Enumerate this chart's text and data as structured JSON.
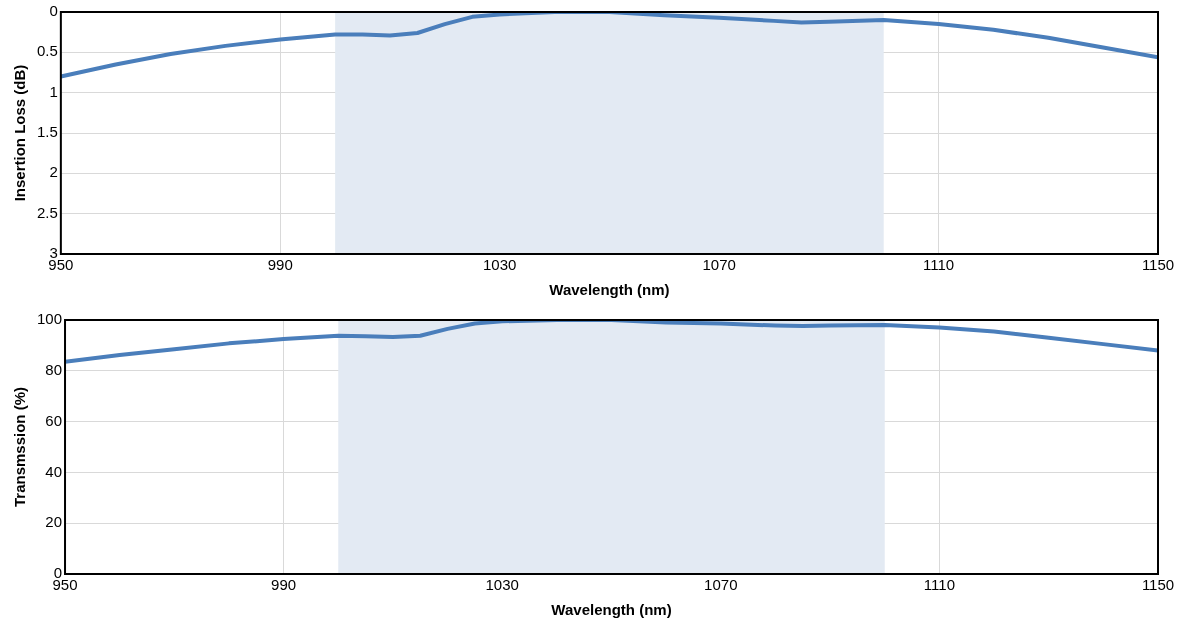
{
  "chart_data": [
    {
      "type": "line",
      "xlabel": "Wavelength (nm)",
      "ylabel": "Insertion Loss (dB)",
      "x": [
        950,
        960,
        970,
        980,
        990,
        1000,
        1005,
        1010,
        1015,
        1020,
        1025,
        1030,
        1040,
        1050,
        1060,
        1070,
        1080,
        1085,
        1090,
        1100,
        1110,
        1120,
        1130,
        1140,
        1150
      ],
      "series": [
        {
          "color": "#4a7ebb",
          "values": [
            0.8,
            0.65,
            0.52,
            0.42,
            0.34,
            0.28,
            0.28,
            0.29,
            0.26,
            0.15,
            0.06,
            0.03,
            0.0,
            0.0,
            0.04,
            0.07,
            0.11,
            0.13,
            0.12,
            0.1,
            0.15,
            0.22,
            0.32,
            0.44,
            0.56
          ]
        }
      ],
      "xlim": [
        950,
        1150
      ],
      "xticks": [
        950,
        990,
        1030,
        1070,
        1110,
        1150
      ],
      "ylim": [
        3,
        0
      ],
      "yticks": [
        0,
        0.5,
        1,
        1.5,
        2,
        2.5,
        3
      ],
      "grid": true,
      "bands": [
        {
          "axis": "x",
          "from": 1000,
          "to": 1100,
          "color": "#e3eaf3"
        }
      ]
    },
    {
      "type": "line",
      "xlabel": "Wavelength (nm)",
      "ylabel": "Transmssion (%)",
      "x": [
        950,
        960,
        970,
        980,
        990,
        1000,
        1005,
        1010,
        1015,
        1020,
        1025,
        1030,
        1040,
        1050,
        1060,
        1070,
        1080,
        1085,
        1090,
        1100,
        1110,
        1120,
        1130,
        1140,
        1150
      ],
      "series": [
        {
          "color": "#4a7ebb",
          "values": [
            83.6,
            86.2,
            88.5,
            90.8,
            92.5,
            93.8,
            93.6,
            93.3,
            93.8,
            96.5,
            98.6,
            99.5,
            100,
            100,
            99,
            98.6,
            97.8,
            97.6,
            97.8,
            98,
            97,
            95.5,
            93,
            90.5,
            88
          ]
        }
      ],
      "xlim": [
        950,
        1150
      ],
      "xticks": [
        950,
        990,
        1030,
        1070,
        1110,
        1150
      ],
      "ylim": [
        0,
        100
      ],
      "yticks": [
        0,
        20,
        40,
        60,
        80,
        100
      ],
      "grid": true,
      "bands": [
        {
          "axis": "x",
          "from": 1000,
          "to": 1100,
          "color": "#e3eaf3"
        }
      ]
    }
  ]
}
